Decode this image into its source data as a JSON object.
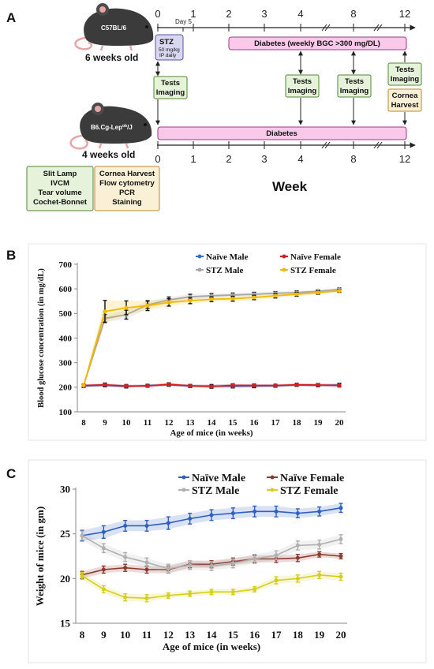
{
  "panel_a": {
    "label": "A",
    "mouse1": "C57BL/6",
    "mouse1_age": "6 weeks old",
    "mouse2_prefix": "B6.Cg-Lep",
    "mouse2_sup": "ob",
    "mouse2_suffix": "/J",
    "mouse2_age": "4 weeks old",
    "top_ticks": [
      "0",
      "1",
      "2",
      "3",
      "4",
      "8",
      "12"
    ],
    "bottom_ticks": [
      "0",
      "1",
      "2",
      "3",
      "4",
      "8",
      "12"
    ],
    "day5": "Day 5",
    "stz_title": "STZ",
    "stz_line1": "50 mg/kg",
    "stz_line2": "IP daily",
    "diabetes_top": "Diabetes (weekly BGC >300 mg/DL)",
    "diabetes_bottom": "Diabetes",
    "tests_imaging": [
      "Tests",
      "Imaging"
    ],
    "cornea_harvest": [
      "Cornea",
      "Harvest"
    ],
    "methods_left": [
      "Slit Lamp",
      "IVCM",
      "Tear volume",
      "Cochet-Bonnet"
    ],
    "methods_right": [
      "Cornea Harvest",
      "Flow cytometry",
      "PCR",
      "Staining"
    ],
    "week_label": "Week",
    "colors": {
      "green_box": "#e6f2da",
      "green_border": "#4f8a32",
      "yellow_box": "#faf0d5",
      "yellow_border": "#b88a35",
      "pink_bar": "#f8c9e8",
      "pink_border": "#a0388a",
      "stz_box": "#d9d7ef",
      "stz_border": "#5a55a5",
      "mouse": "#3b3b3b"
    }
  },
  "panel_b": {
    "label": "B",
    "chart_data": {
      "type": "line",
      "xlabel": "Age of mice (in weeks)",
      "ylabel": "Blood glucose concentration (in mg/dL)",
      "x": [
        8,
        9,
        10,
        11,
        12,
        13,
        14,
        15,
        16,
        17,
        18,
        19,
        20
      ],
      "ylim": [
        100,
        700
      ],
      "yticks": [
        100,
        200,
        300,
        400,
        500,
        600,
        700
      ],
      "legend_position": "top",
      "series": [
        {
          "name": "Naïve Male",
          "color": "#2f6fd6",
          "values": [
            205,
            208,
            203,
            207,
            210,
            205,
            205,
            204,
            205,
            206,
            209,
            208,
            209
          ],
          "errors": [
            6,
            6,
            6,
            5,
            6,
            6,
            6,
            7,
            7,
            6,
            5,
            6,
            7
          ]
        },
        {
          "name": "Naïve Female",
          "color": "#d42020",
          "values": [
            207,
            210,
            205,
            205,
            212,
            206,
            203,
            208,
            207,
            207,
            210,
            209,
            207
          ],
          "errors": [
            5,
            7,
            6,
            5,
            6,
            5,
            7,
            6,
            6,
            5,
            6,
            6,
            6
          ]
        },
        {
          "name": "STZ Male",
          "color": "#a5a5a5",
          "values": [
            207,
            480,
            495,
            535,
            555,
            568,
            572,
            575,
            578,
            582,
            585,
            590,
            598
          ],
          "errors": [
            5,
            15,
            18,
            15,
            12,
            10,
            9,
            8,
            8,
            7,
            7,
            6,
            6
          ]
        },
        {
          "name": "STZ Female",
          "color": "#f5b800",
          "values": [
            207,
            508,
            523,
            532,
            545,
            552,
            558,
            560,
            565,
            572,
            578,
            585,
            592
          ],
          "errors": [
            5,
            45,
            28,
            20,
            15,
            12,
            10,
            10,
            9,
            9,
            8,
            7,
            6
          ]
        }
      ]
    }
  },
  "panel_c": {
    "label": "C",
    "chart_data": {
      "type": "line",
      "xlabel": "Age of mice (in weeks)",
      "ylabel": "Weight of mice (in gm)",
      "x": [
        8,
        9,
        10,
        11,
        12,
        13,
        14,
        15,
        16,
        17,
        18,
        19,
        20
      ],
      "ylim": [
        15,
        30
      ],
      "yticks": [
        15,
        20,
        25,
        30
      ],
      "legend_position": "top",
      "series": [
        {
          "name": "Naïve Male",
          "color": "#2f5fbf",
          "values": [
            24.8,
            25.2,
            25.9,
            25.9,
            26.2,
            26.7,
            27.1,
            27.3,
            27.5,
            27.5,
            27.3,
            27.5,
            27.9
          ],
          "errors": [
            0.6,
            0.7,
            0.6,
            0.6,
            0.7,
            0.6,
            0.6,
            0.6,
            0.6,
            0.6,
            0.5,
            0.5,
            0.5
          ]
        },
        {
          "name": "Naïve Female",
          "color": "#8b3a2e",
          "values": [
            20.4,
            21.0,
            21.2,
            21.0,
            21.0,
            21.6,
            21.6,
            21.9,
            22.2,
            22.2,
            22.3,
            22.7,
            22.5
          ],
          "errors": [
            0.4,
            0.4,
            0.4,
            0.4,
            0.4,
            0.4,
            0.4,
            0.4,
            0.4,
            0.4,
            0.4,
            0.3,
            0.3
          ]
        },
        {
          "name": "STZ Male",
          "color": "#b0b0b0",
          "values": [
            24.8,
            23.4,
            22.4,
            21.8,
            21.1,
            21.5,
            21.4,
            21.7,
            22.2,
            22.6,
            23.7,
            23.8,
            24.4
          ],
          "errors": [
            0.5,
            0.5,
            0.5,
            0.5,
            0.5,
            0.5,
            0.5,
            0.5,
            0.5,
            0.5,
            0.5,
            0.5,
            0.5
          ]
        },
        {
          "name": "STZ Female",
          "color": "#d4cf1a",
          "values": [
            20.3,
            18.8,
            17.9,
            17.8,
            18.1,
            18.3,
            18.5,
            18.5,
            18.8,
            19.8,
            20.0,
            20.4,
            20.2
          ],
          "errors": [
            0.4,
            0.4,
            0.4,
            0.4,
            0.3,
            0.3,
            0.3,
            0.3,
            0.3,
            0.4,
            0.4,
            0.4,
            0.4
          ]
        }
      ]
    }
  }
}
